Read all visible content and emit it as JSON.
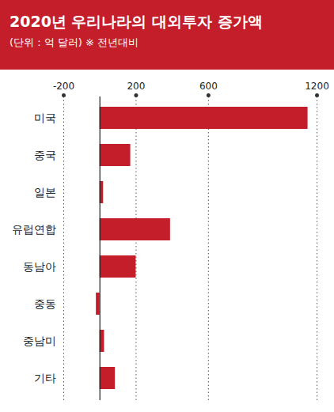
{
  "chart_data": {
    "type": "bar",
    "title": "2020년 우리나라의 대외투자 증가액",
    "subtitle": "(단위 : 억 달러) ※ 전년대비",
    "orientation": "horizontal",
    "categories": [
      "미국",
      "중국",
      "일본",
      "유럽연합",
      "동남아",
      "중동",
      "중남미",
      "기타"
    ],
    "values": [
      1150,
      170,
      20,
      390,
      200,
      -20,
      25,
      85
    ],
    "color": "#c41e2a",
    "xlim": [
      -200,
      1200
    ],
    "xticks": [
      -200,
      200,
      600,
      1200
    ],
    "grid": true
  }
}
